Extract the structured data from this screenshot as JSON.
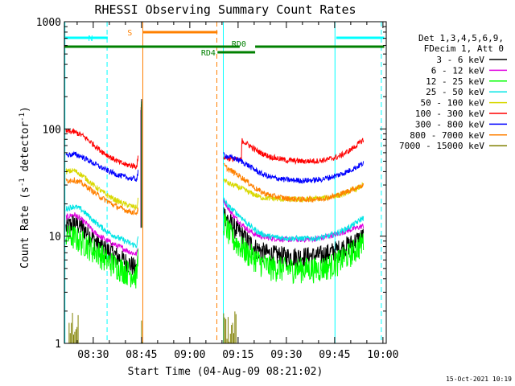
{
  "chart_data": {
    "type": "line",
    "title": "RHESSI Observing Summary Count Rates",
    "xlabel": "Start Time (04-Aug-09 08:21:02)",
    "ylabel_main": "Count Rate (s",
    "ylabel_sup1": "-1",
    "ylabel_mid": " detector",
    "ylabel_sup2": "-1",
    "ylabel_end": ")",
    "yscale": "log",
    "ylim": [
      1,
      1000
    ],
    "xlim_minutes": [
      21.03,
      121.03
    ],
    "x_ticks": [
      {
        "label": "08:30",
        "minute": 30
      },
      {
        "label": "08:45",
        "minute": 45
      },
      {
        "label": "09:00",
        "minute": 60
      },
      {
        "label": "09:15",
        "minute": 75
      },
      {
        "label": "09:30",
        "minute": 90
      },
      {
        "label": "09:45",
        "minute": 105
      },
      {
        "label": "10:00",
        "minute": 120
      }
    ],
    "y_ticks": [
      {
        "label": "1",
        "value": 1
      },
      {
        "label": "10",
        "value": 10
      },
      {
        "label": "100",
        "value": 100
      },
      {
        "label": "1000",
        "value": 1000
      }
    ],
    "legend_header": [
      "Det 1,3,4,5,6,9,",
      "FDecim 1, Att 0"
    ],
    "legend_position": "right",
    "series": [
      {
        "name": "3 - 6 keV",
        "color": "#000000",
        "points": [
          [
            21.5,
            12
          ],
          [
            24,
            13.5
          ],
          [
            26,
            12.5
          ],
          [
            28,
            11
          ],
          [
            30,
            9.5
          ],
          [
            32,
            8.2
          ],
          [
            34,
            7.5
          ],
          [
            36,
            7
          ],
          [
            38,
            6.3
          ],
          [
            40,
            5.8
          ],
          [
            42,
            5.4
          ],
          [
            43.5,
            4.8
          ],
          [
            44,
            6.5
          ]
        ],
        "points2": [
          [
            70.5,
            17
          ],
          [
            72,
            14
          ],
          [
            74,
            12
          ],
          [
            76,
            10.5
          ],
          [
            78,
            9
          ],
          [
            80,
            8
          ],
          [
            82,
            7.3
          ],
          [
            85,
            6.8
          ],
          [
            90,
            6.5
          ],
          [
            95,
            6.5
          ],
          [
            100,
            6.6
          ],
          [
            103,
            7
          ],
          [
            106,
            7.5
          ],
          [
            108,
            8
          ],
          [
            110,
            8.5
          ],
          [
            112,
            9.2
          ],
          [
            114,
            10
          ]
        ]
      },
      {
        "name": "6 - 12 keV",
        "color": "#e000e0",
        "points": [
          [
            21.5,
            15
          ],
          [
            24,
            16
          ],
          [
            26,
            14.5
          ],
          [
            28,
            13
          ],
          [
            30,
            11
          ],
          [
            32,
            10
          ],
          [
            34,
            9.2
          ],
          [
            36,
            8.5
          ],
          [
            38,
            8
          ],
          [
            40,
            7.5
          ],
          [
            42,
            7
          ],
          [
            43.5,
            6.8
          ],
          [
            44,
            8
          ]
        ],
        "points2": [
          [
            70.5,
            22
          ],
          [
            72,
            18
          ],
          [
            74,
            15
          ],
          [
            76,
            13
          ],
          [
            78,
            11.5
          ],
          [
            80,
            10.5
          ],
          [
            82,
            10
          ],
          [
            85,
            9.6
          ],
          [
            90,
            9.3
          ],
          [
            95,
            9.3
          ],
          [
            100,
            9.5
          ],
          [
            103,
            10
          ],
          [
            106,
            10.5
          ],
          [
            108,
            11
          ],
          [
            110,
            11.5
          ],
          [
            112,
            12
          ],
          [
            114,
            12.5
          ]
        ]
      },
      {
        "name": "12 - 25 keV",
        "color": "#00ff00",
        "points": [
          [
            21.5,
            10
          ],
          [
            24,
            10
          ],
          [
            26,
            9
          ],
          [
            28,
            8.5
          ],
          [
            30,
            7.5
          ],
          [
            32,
            7
          ],
          [
            34,
            6
          ],
          [
            36,
            5.6
          ],
          [
            38,
            5.2
          ],
          [
            40,
            4.8
          ],
          [
            42,
            4.5
          ],
          [
            43.5,
            4.3
          ],
          [
            44,
            7
          ]
        ],
        "points2": [
          [
            70.5,
            14
          ],
          [
            72,
            11
          ],
          [
            74,
            9
          ],
          [
            76,
            8
          ],
          [
            78,
            7
          ],
          [
            80,
            6.4
          ],
          [
            82,
            5.7
          ],
          [
            85,
            5.2
          ],
          [
            90,
            5
          ],
          [
            95,
            5
          ],
          [
            100,
            5
          ],
          [
            103,
            5.3
          ],
          [
            106,
            5.8
          ],
          [
            108,
            6.4
          ],
          [
            110,
            7
          ],
          [
            112,
            7.8
          ],
          [
            114,
            9
          ]
        ]
      },
      {
        "name": "25 - 50 keV",
        "color": "#00e5e5",
        "points": [
          [
            21.5,
            18
          ],
          [
            24,
            19
          ],
          [
            26,
            18
          ],
          [
            28,
            16
          ],
          [
            30,
            14
          ],
          [
            32,
            12.5
          ],
          [
            34,
            11.2
          ],
          [
            36,
            10.3
          ],
          [
            38,
            9.6
          ],
          [
            40,
            9
          ],
          [
            42,
            8.4
          ],
          [
            43.5,
            8.2
          ],
          [
            44,
            10
          ]
        ],
        "points2": [
          [
            70.5,
            22
          ],
          [
            72,
            19
          ],
          [
            74,
            17
          ],
          [
            76,
            15
          ],
          [
            78,
            13
          ],
          [
            80,
            11.6
          ],
          [
            82,
            10.6
          ],
          [
            85,
            9.9
          ],
          [
            90,
            9.6
          ],
          [
            95,
            9.5
          ],
          [
            100,
            9.6
          ],
          [
            103,
            10
          ],
          [
            106,
            10.8
          ],
          [
            108,
            11.5
          ],
          [
            110,
            12.4
          ],
          [
            112,
            13.5
          ],
          [
            114,
            15
          ]
        ]
      },
      {
        "name": "50 - 100 keV",
        "color": "#d8d800",
        "points": [
          [
            21.5,
            40
          ],
          [
            24,
            41
          ],
          [
            26,
            38
          ],
          [
            28,
            34
          ],
          [
            30,
            30
          ],
          [
            32,
            27
          ],
          [
            34,
            24.5
          ],
          [
            36,
            22.5
          ],
          [
            38,
            21
          ],
          [
            40,
            19.8
          ],
          [
            42,
            19
          ],
          [
            43.5,
            18.5
          ],
          [
            44,
            22
          ]
        ],
        "points2": [
          [
            70.5,
            34
          ],
          [
            72,
            31
          ],
          [
            74,
            29.5
          ],
          [
            76,
            28
          ],
          [
            78,
            26
          ],
          [
            80,
            24.5
          ],
          [
            82,
            23
          ],
          [
            85,
            22.5
          ],
          [
            90,
            22
          ],
          [
            95,
            22
          ],
          [
            100,
            22.4
          ],
          [
            103,
            23
          ],
          [
            106,
            24
          ],
          [
            108,
            25
          ],
          [
            110,
            26.5
          ],
          [
            112,
            28
          ],
          [
            114,
            30
          ]
        ]
      },
      {
        "name": "100 - 300 keV",
        "color": "#ff0000",
        "points": [
          [
            21.5,
            95
          ],
          [
            24,
            94
          ],
          [
            26,
            89
          ],
          [
            28,
            81
          ],
          [
            30,
            72
          ],
          [
            32,
            64
          ],
          [
            34,
            58
          ],
          [
            36,
            53
          ],
          [
            38,
            49
          ],
          [
            40,
            46.5
          ],
          [
            42,
            45.5
          ],
          [
            43.5,
            45
          ],
          [
            44,
            55
          ]
        ],
        "points2": [
          [
            70.5,
            55
          ],
          [
            72,
            53
          ],
          [
            74,
            52
          ],
          [
            75.5,
            51
          ],
          [
            76,
            52
          ],
          [
            76.2,
            78
          ],
          [
            78,
            72
          ],
          [
            80,
            65
          ],
          [
            82,
            60
          ],
          [
            85,
            55
          ],
          [
            90,
            51
          ],
          [
            95,
            50
          ],
          [
            100,
            50.5
          ],
          [
            103,
            52
          ],
          [
            106,
            55
          ],
          [
            108,
            59
          ],
          [
            110,
            64
          ],
          [
            112,
            71
          ],
          [
            114,
            80
          ]
        ]
      },
      {
        "name": "300 - 800 keV",
        "color": "#0000ff",
        "points": [
          [
            21.5,
            57
          ],
          [
            24,
            58
          ],
          [
            26,
            56
          ],
          [
            28,
            52
          ],
          [
            30,
            48
          ],
          [
            32,
            44.5
          ],
          [
            34,
            41.5
          ],
          [
            36,
            39
          ],
          [
            38,
            37
          ],
          [
            40,
            35.5
          ],
          [
            42,
            34.5
          ],
          [
            43.5,
            34
          ],
          [
            44,
            40
          ]
        ],
        "points2": [
          [
            70.5,
            58
          ],
          [
            72,
            55
          ],
          [
            74,
            53
          ],
          [
            76,
            50
          ],
          [
            78,
            46
          ],
          [
            80,
            42
          ],
          [
            82,
            38.5
          ],
          [
            85,
            35.5
          ],
          [
            90,
            33.5
          ],
          [
            95,
            33
          ],
          [
            100,
            33.5
          ],
          [
            103,
            35
          ],
          [
            106,
            37
          ],
          [
            108,
            39
          ],
          [
            110,
            41.5
          ],
          [
            112,
            44.5
          ],
          [
            114,
            48
          ]
        ]
      },
      {
        "name": "800 - 7000 keV",
        "color": "#ff8000",
        "points": [
          [
            21.5,
            33
          ],
          [
            24,
            33.5
          ],
          [
            26,
            31.5
          ],
          [
            28,
            29
          ],
          [
            30,
            26
          ],
          [
            32,
            23.5
          ],
          [
            34,
            21.5
          ],
          [
            36,
            19.8
          ],
          [
            38,
            18.5
          ],
          [
            40,
            17.5
          ],
          [
            42,
            16.8
          ],
          [
            43.5,
            16.5
          ],
          [
            44,
            18
          ]
        ],
        "points2": [
          [
            70.5,
            46
          ],
          [
            72,
            42
          ],
          [
            74,
            39
          ],
          [
            76,
            35.5
          ],
          [
            78,
            32
          ],
          [
            80,
            28.5
          ],
          [
            82,
            26
          ],
          [
            85,
            24
          ],
          [
            90,
            22.5
          ],
          [
            95,
            22
          ],
          [
            100,
            22.2
          ],
          [
            103,
            23
          ],
          [
            106,
            24.2
          ],
          [
            108,
            25.5
          ],
          [
            110,
            27
          ],
          [
            112,
            28.5
          ],
          [
            114,
            30
          ]
        ]
      },
      {
        "name": "7000 - 15000 keV",
        "color": "#808000",
        "points": [],
        "points2": []
      }
    ],
    "mode_bars": [
      {
        "label": "N",
        "color": "#00ffff",
        "segments": [
          [
            21.03,
            34.5
          ],
          [
            105.5,
            120.4
          ]
        ]
      },
      {
        "label": "S",
        "color": "#ff8000",
        "segments": [
          [
            45.3,
            68.6
          ]
        ]
      },
      {
        "label": "RD0",
        "color": "#008000",
        "segments": [
          [
            21.03,
            75.5
          ],
          [
            80.3,
            120.4
          ]
        ]
      },
      {
        "label": "RD4",
        "color": "#008000",
        "segments": [
          [
            68.6,
            80.3
          ]
        ]
      }
    ],
    "vlines": [
      {
        "minute": 21.2,
        "color": "#00ffff",
        "style": "solid"
      },
      {
        "minute": 34.3,
        "color": "#00ffff",
        "style": "dashed"
      },
      {
        "minute": 45.4,
        "color": "#ff8000",
        "style": "solid"
      },
      {
        "minute": 68.4,
        "color": "#ff8000",
        "style": "dashed"
      },
      {
        "minute": 70.4,
        "color": "#00ffff",
        "style": "solid"
      },
      {
        "minute": 105.1,
        "color": "#00ffff",
        "style": "solid"
      },
      {
        "minute": 119.5,
        "color": "#00ffff",
        "style": "dashed"
      }
    ]
  },
  "footer_timestamp": "15-Oct-2021 10:19"
}
